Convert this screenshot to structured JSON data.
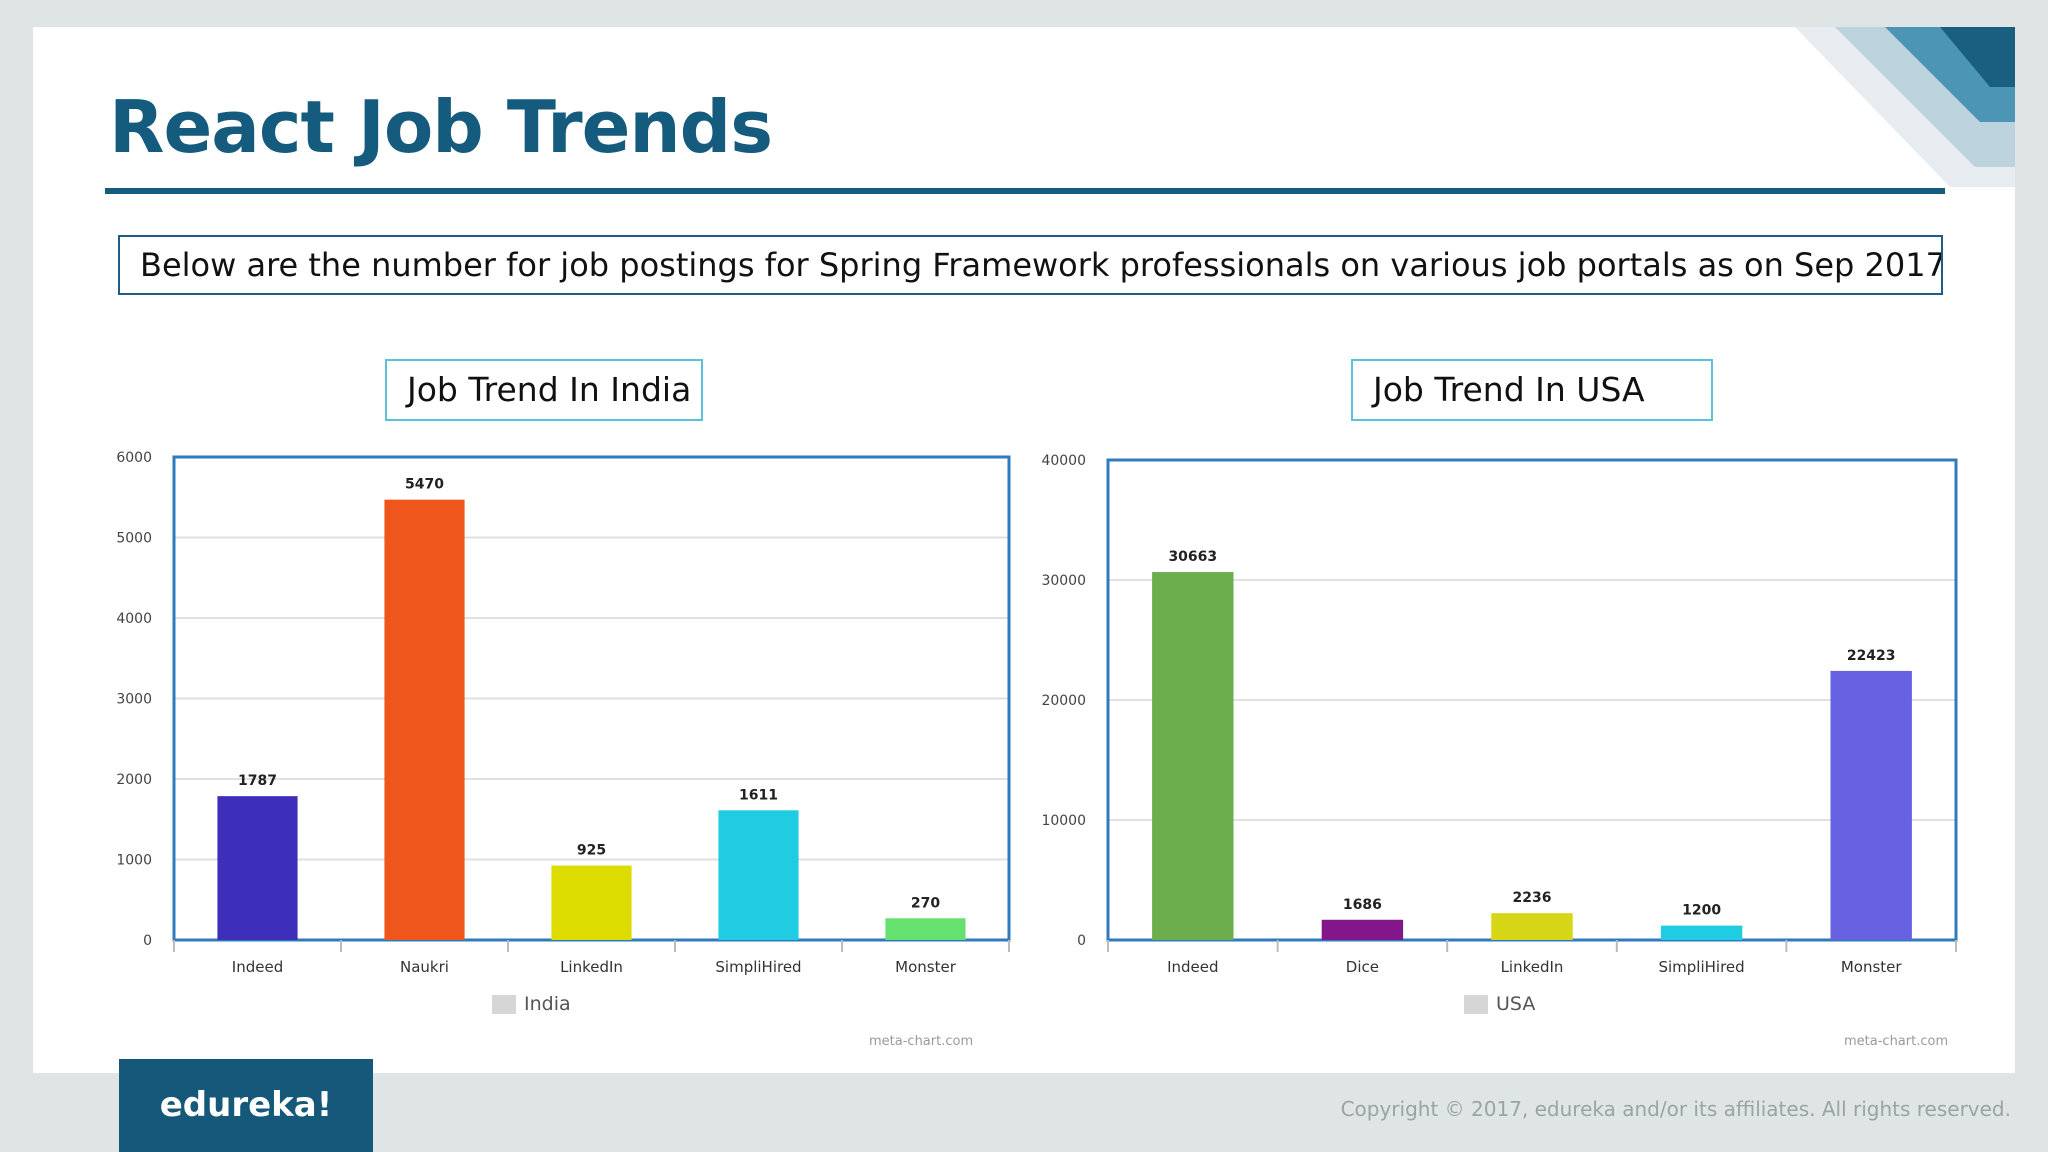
{
  "slide": {
    "title": "React Job Trends",
    "description": "Below are the number for job postings for Spring Framework professionals on various job portals as on Sep 2017",
    "logo_text": "edureka!",
    "copyright": "Copyright © 2017, edureka and/or its affiliates. All rights reserved."
  },
  "colors": {
    "title": "#155b7e",
    "logo_bg": "#16587a",
    "plot_border": "#2f7bbd"
  },
  "chart_data": [
    {
      "type": "bar",
      "title": "Job Trend In India",
      "categories": [
        "Indeed",
        "Naukri",
        "LinkedIn",
        "SimpliHired",
        "Monster"
      ],
      "values": [
        1787,
        5470,
        925,
        1611,
        270
      ],
      "value_labels": [
        "1787",
        "5470",
        "925",
        "1611",
        "270"
      ],
      "colors": [
        "#3d2fb9",
        "#ef561b",
        "#dcdc00",
        "#20cce2",
        "#66e06e"
      ],
      "ylim": [
        0,
        6000
      ],
      "yticks": [
        "0",
        "1000",
        "2000",
        "3000",
        "4000",
        "5000",
        "6000"
      ],
      "legend": "India",
      "credit": "meta-chart.com",
      "grid": true
    },
    {
      "type": "bar",
      "title": "Job Trend In USA",
      "categories": [
        "Indeed",
        "Dice",
        "LinkedIn",
        "SimpliHired",
        "Monster"
      ],
      "values": [
        30663,
        1686,
        2236,
        1200,
        22423
      ],
      "value_labels": [
        "30663",
        "1686",
        "2236",
        "1200",
        "22423"
      ],
      "colors": [
        "#6cae4e",
        "#84168b",
        "#d6d616",
        "#20cce2",
        "#6762e2"
      ],
      "ylim": [
        0,
        40000
      ],
      "yticks": [
        "0",
        "10000",
        "20000",
        "30000",
        "40000"
      ],
      "legend": "USA",
      "credit": "meta-chart.com",
      "grid": true
    }
  ]
}
